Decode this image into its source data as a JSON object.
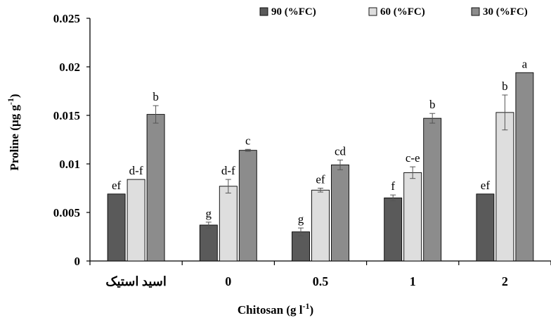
{
  "chart_data": {
    "type": "bar",
    "xlabel": "Chitosan (g l-1)",
    "xlabel_parts": {
      "main": "Chitosan (g l",
      "sup": "-1",
      "close": ")"
    },
    "ylabel": "Proline (µg g-1)",
    "ylabel_parts": {
      "main": "Proline (µg g",
      "sup": "-1",
      "close": ")"
    },
    "ylim": [
      0,
      0.025
    ],
    "yticks": [
      0,
      0.005,
      0.01,
      0.015,
      0.02,
      0.025
    ],
    "ytick_labels": [
      "0",
      "0.005",
      "0.01",
      "0.015",
      "0.02",
      "0.025"
    ],
    "categories": [
      "اسید استیک",
      "0",
      "0.5",
      "1",
      "2"
    ],
    "grid": false,
    "legend_position": "top-right",
    "series": [
      {
        "name": "90 (%FC)",
        "color": "#5a5a5a",
        "values": [
          0.0069,
          0.0037,
          0.003,
          0.0065,
          0.0069
        ],
        "errors": [
          0,
          0.0003,
          0.0004,
          0.0003,
          0
        ],
        "letters": [
          "ef",
          "g",
          "g",
          "f",
          "ef"
        ]
      },
      {
        "name": "60 (%FC)",
        "color": "#dedede",
        "values": [
          0.0084,
          0.0077,
          0.0073,
          0.0091,
          0.0153
        ],
        "errors": [
          0,
          0.0007,
          0.0002,
          0.0006,
          0.0018
        ],
        "letters": [
          "d-f",
          "d-f",
          "ef",
          "c-e",
          "b"
        ]
      },
      {
        "name": "30 (%FC)",
        "color": "#8c8c8c",
        "values": [
          0.0151,
          0.0114,
          0.0099,
          0.0147,
          0.0194
        ],
        "errors": [
          0.0009,
          0.0001,
          0.0005,
          0.0005,
          0
        ],
        "letters": [
          "b",
          "c",
          "cd",
          "b",
          "a"
        ]
      }
    ]
  }
}
